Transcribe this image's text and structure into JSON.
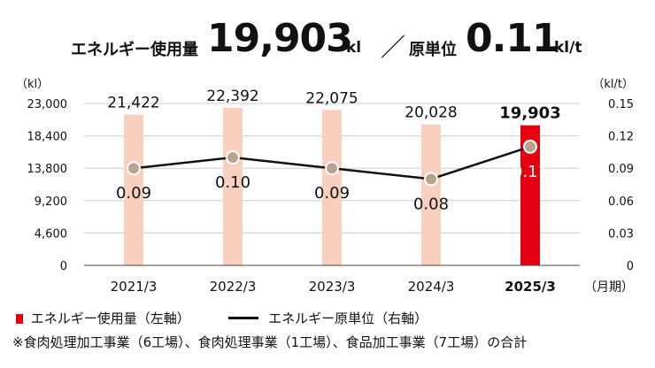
{
  "headline": {
    "energy_label": "エネルギー使用量",
    "energy_value": "19,903",
    "energy_unit": "kl",
    "slash": "／",
    "intensity_label": "原単位",
    "intensity_value": "0.11",
    "intensity_unit": "kl/t"
  },
  "legend": {
    "bar_label": "エネルギー使用量（左軸）",
    "line_label": "エネルギー原単位（右軸）"
  },
  "footnote": "※食肉処理加工事業（6工場）、食肉処理事業（1工場）、食品加工事業（7工場）の合計",
  "colors": {
    "bar": "#f9cfc0",
    "bar_highlight": "#e50012",
    "line": "#111111",
    "marker": "#b9a38f",
    "grid": "#cccccc"
  },
  "chart_data": {
    "type": "bar",
    "categories": [
      "2021/3",
      "2022/3",
      "2023/3",
      "2024/3",
      "2025/3"
    ],
    "x_unit": "（月期）",
    "series": [
      {
        "values": [
          21422,
          22392,
          22075,
          20028,
          19903
        ],
        "labels": [
          "21,422",
          "22,392",
          "22,075",
          "20,028",
          "19,903"
        ]
      },
      {
        "values": [
          0.09,
          0.1,
          0.09,
          0.08,
          0.11
        ],
        "labels": [
          "0.09",
          "0.10",
          "0.09",
          "0.08",
          "0.11"
        ]
      }
    ],
    "left_axis": {
      "unit": "（kl）",
      "ylim": [
        0,
        23000
      ],
      "ticks": [
        "0",
        "4,600",
        "9,200",
        "13,800",
        "18,400",
        "23,000"
      ]
    },
    "right_axis": {
      "unit": "（kl/t）",
      "ylim": [
        0,
        0.15
      ],
      "ticks": [
        "0",
        "0.03",
        "0.06",
        "0.09",
        "0.12",
        "0.15"
      ]
    },
    "highlight_index": 4,
    "grid": true
  }
}
